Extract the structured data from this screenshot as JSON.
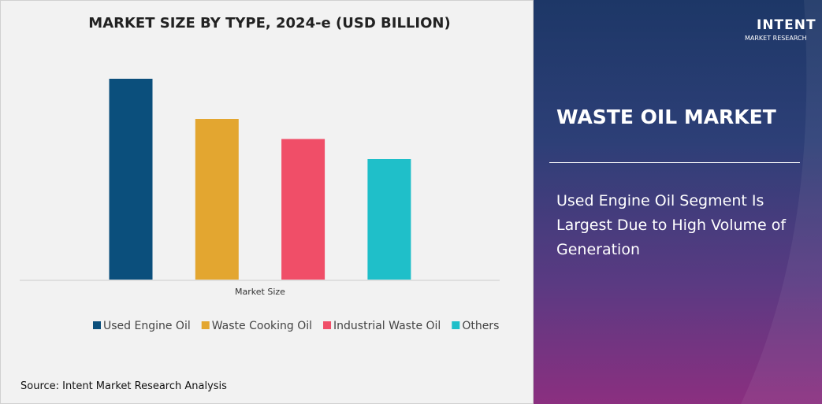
{
  "chart_data": {
    "type": "bar",
    "title": "MARKET SIZE BY TYPE, 2024-e (USD BILLION)",
    "categories": [
      "Market Size"
    ],
    "series": [
      {
        "name": "Used Engine Oil",
        "color": "#0b4f7c",
        "values": [
          100
        ]
      },
      {
        "name": "Waste Cooking Oil",
        "color": "#e3a630",
        "values": [
          80
        ]
      },
      {
        "name": "Industrial Waste Oil",
        "color": "#f04e68",
        "values": [
          70
        ]
      },
      {
        "name": "Others",
        "color": "#1fbfc9",
        "values": [
          60
        ]
      }
    ],
    "ylim": [
      0,
      100
    ]
  },
  "panel": {
    "title": "WASTE OIL MARKET",
    "headline": "Used Engine Oil Segment Is Largest Due to High Volume of Generation"
  },
  "source": "Source: Intent Market Research Analysis",
  "logo": {
    "name": "INTENT",
    "tagline": "MARKET RESEARCH"
  }
}
